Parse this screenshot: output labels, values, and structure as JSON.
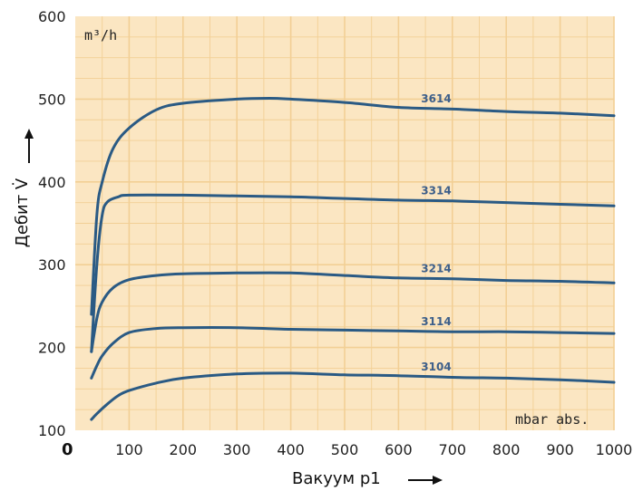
{
  "chart_data": {
    "type": "line",
    "title": "",
    "xlabel": "Вакуум p1",
    "ylabel": "Дебит V̇",
    "x_unit": "mbar abs.",
    "y_unit": "m³/h",
    "origin_label": "0",
    "xlim": [
      0,
      1000
    ],
    "ylim": [
      100,
      600
    ],
    "x_ticks": [
      100,
      200,
      300,
      400,
      500,
      600,
      700,
      800,
      900,
      1000
    ],
    "y_ticks": [
      100,
      200,
      300,
      400,
      500,
      600
    ],
    "grid": true,
    "legend": "inline labels",
    "colors": {
      "background": "#fbe6c2",
      "grid": "#f2cf95",
      "line": "#2a5a84",
      "label": "#3d5f8a"
    },
    "series": [
      {
        "name": "3614",
        "points": [
          [
            30,
            240
          ],
          [
            40,
            360
          ],
          [
            50,
            400
          ],
          [
            70,
            440
          ],
          [
            100,
            465
          ],
          [
            150,
            487
          ],
          [
            200,
            495
          ],
          [
            300,
            500
          ],
          [
            360,
            501
          ],
          [
            400,
            500
          ],
          [
            500,
            496
          ],
          [
            600,
            490
          ],
          [
            700,
            488
          ],
          [
            800,
            485
          ],
          [
            900,
            483
          ],
          [
            1000,
            480
          ]
        ]
      },
      {
        "name": "3314",
        "points": [
          [
            30,
            195
          ],
          [
            40,
            300
          ],
          [
            50,
            360
          ],
          [
            60,
            376
          ],
          [
            80,
            382
          ],
          [
            100,
            384
          ],
          [
            200,
            384
          ],
          [
            300,
            383
          ],
          [
            400,
            382
          ],
          [
            500,
            380
          ],
          [
            600,
            378
          ],
          [
            700,
            377
          ],
          [
            800,
            375
          ],
          [
            900,
            373
          ],
          [
            1000,
            371
          ]
        ]
      },
      {
        "name": "3214",
        "points": [
          [
            30,
            195
          ],
          [
            40,
            235
          ],
          [
            50,
            255
          ],
          [
            70,
            272
          ],
          [
            100,
            282
          ],
          [
            150,
            287
          ],
          [
            200,
            289
          ],
          [
            300,
            290
          ],
          [
            400,
            290
          ],
          [
            500,
            287
          ],
          [
            600,
            284
          ],
          [
            700,
            283
          ],
          [
            800,
            281
          ],
          [
            900,
            280
          ],
          [
            1000,
            278
          ]
        ]
      },
      {
        "name": "3114",
        "points": [
          [
            30,
            163
          ],
          [
            40,
            178
          ],
          [
            50,
            190
          ],
          [
            70,
            205
          ],
          [
            100,
            218
          ],
          [
            150,
            223
          ],
          [
            200,
            224
          ],
          [
            300,
            224
          ],
          [
            400,
            222
          ],
          [
            500,
            221
          ],
          [
            600,
            220
          ],
          [
            700,
            219
          ],
          [
            800,
            219
          ],
          [
            900,
            218
          ],
          [
            1000,
            217
          ]
        ]
      },
      {
        "name": "3104",
        "points": [
          [
            30,
            113
          ],
          [
            40,
            120
          ],
          [
            60,
            132
          ],
          [
            80,
            142
          ],
          [
            100,
            148
          ],
          [
            150,
            157
          ],
          [
            200,
            163
          ],
          [
            300,
            168
          ],
          [
            400,
            169
          ],
          [
            500,
            167
          ],
          [
            600,
            166
          ],
          [
            700,
            164
          ],
          [
            800,
            163
          ],
          [
            900,
            161
          ],
          [
            1000,
            158
          ]
        ]
      }
    ]
  }
}
